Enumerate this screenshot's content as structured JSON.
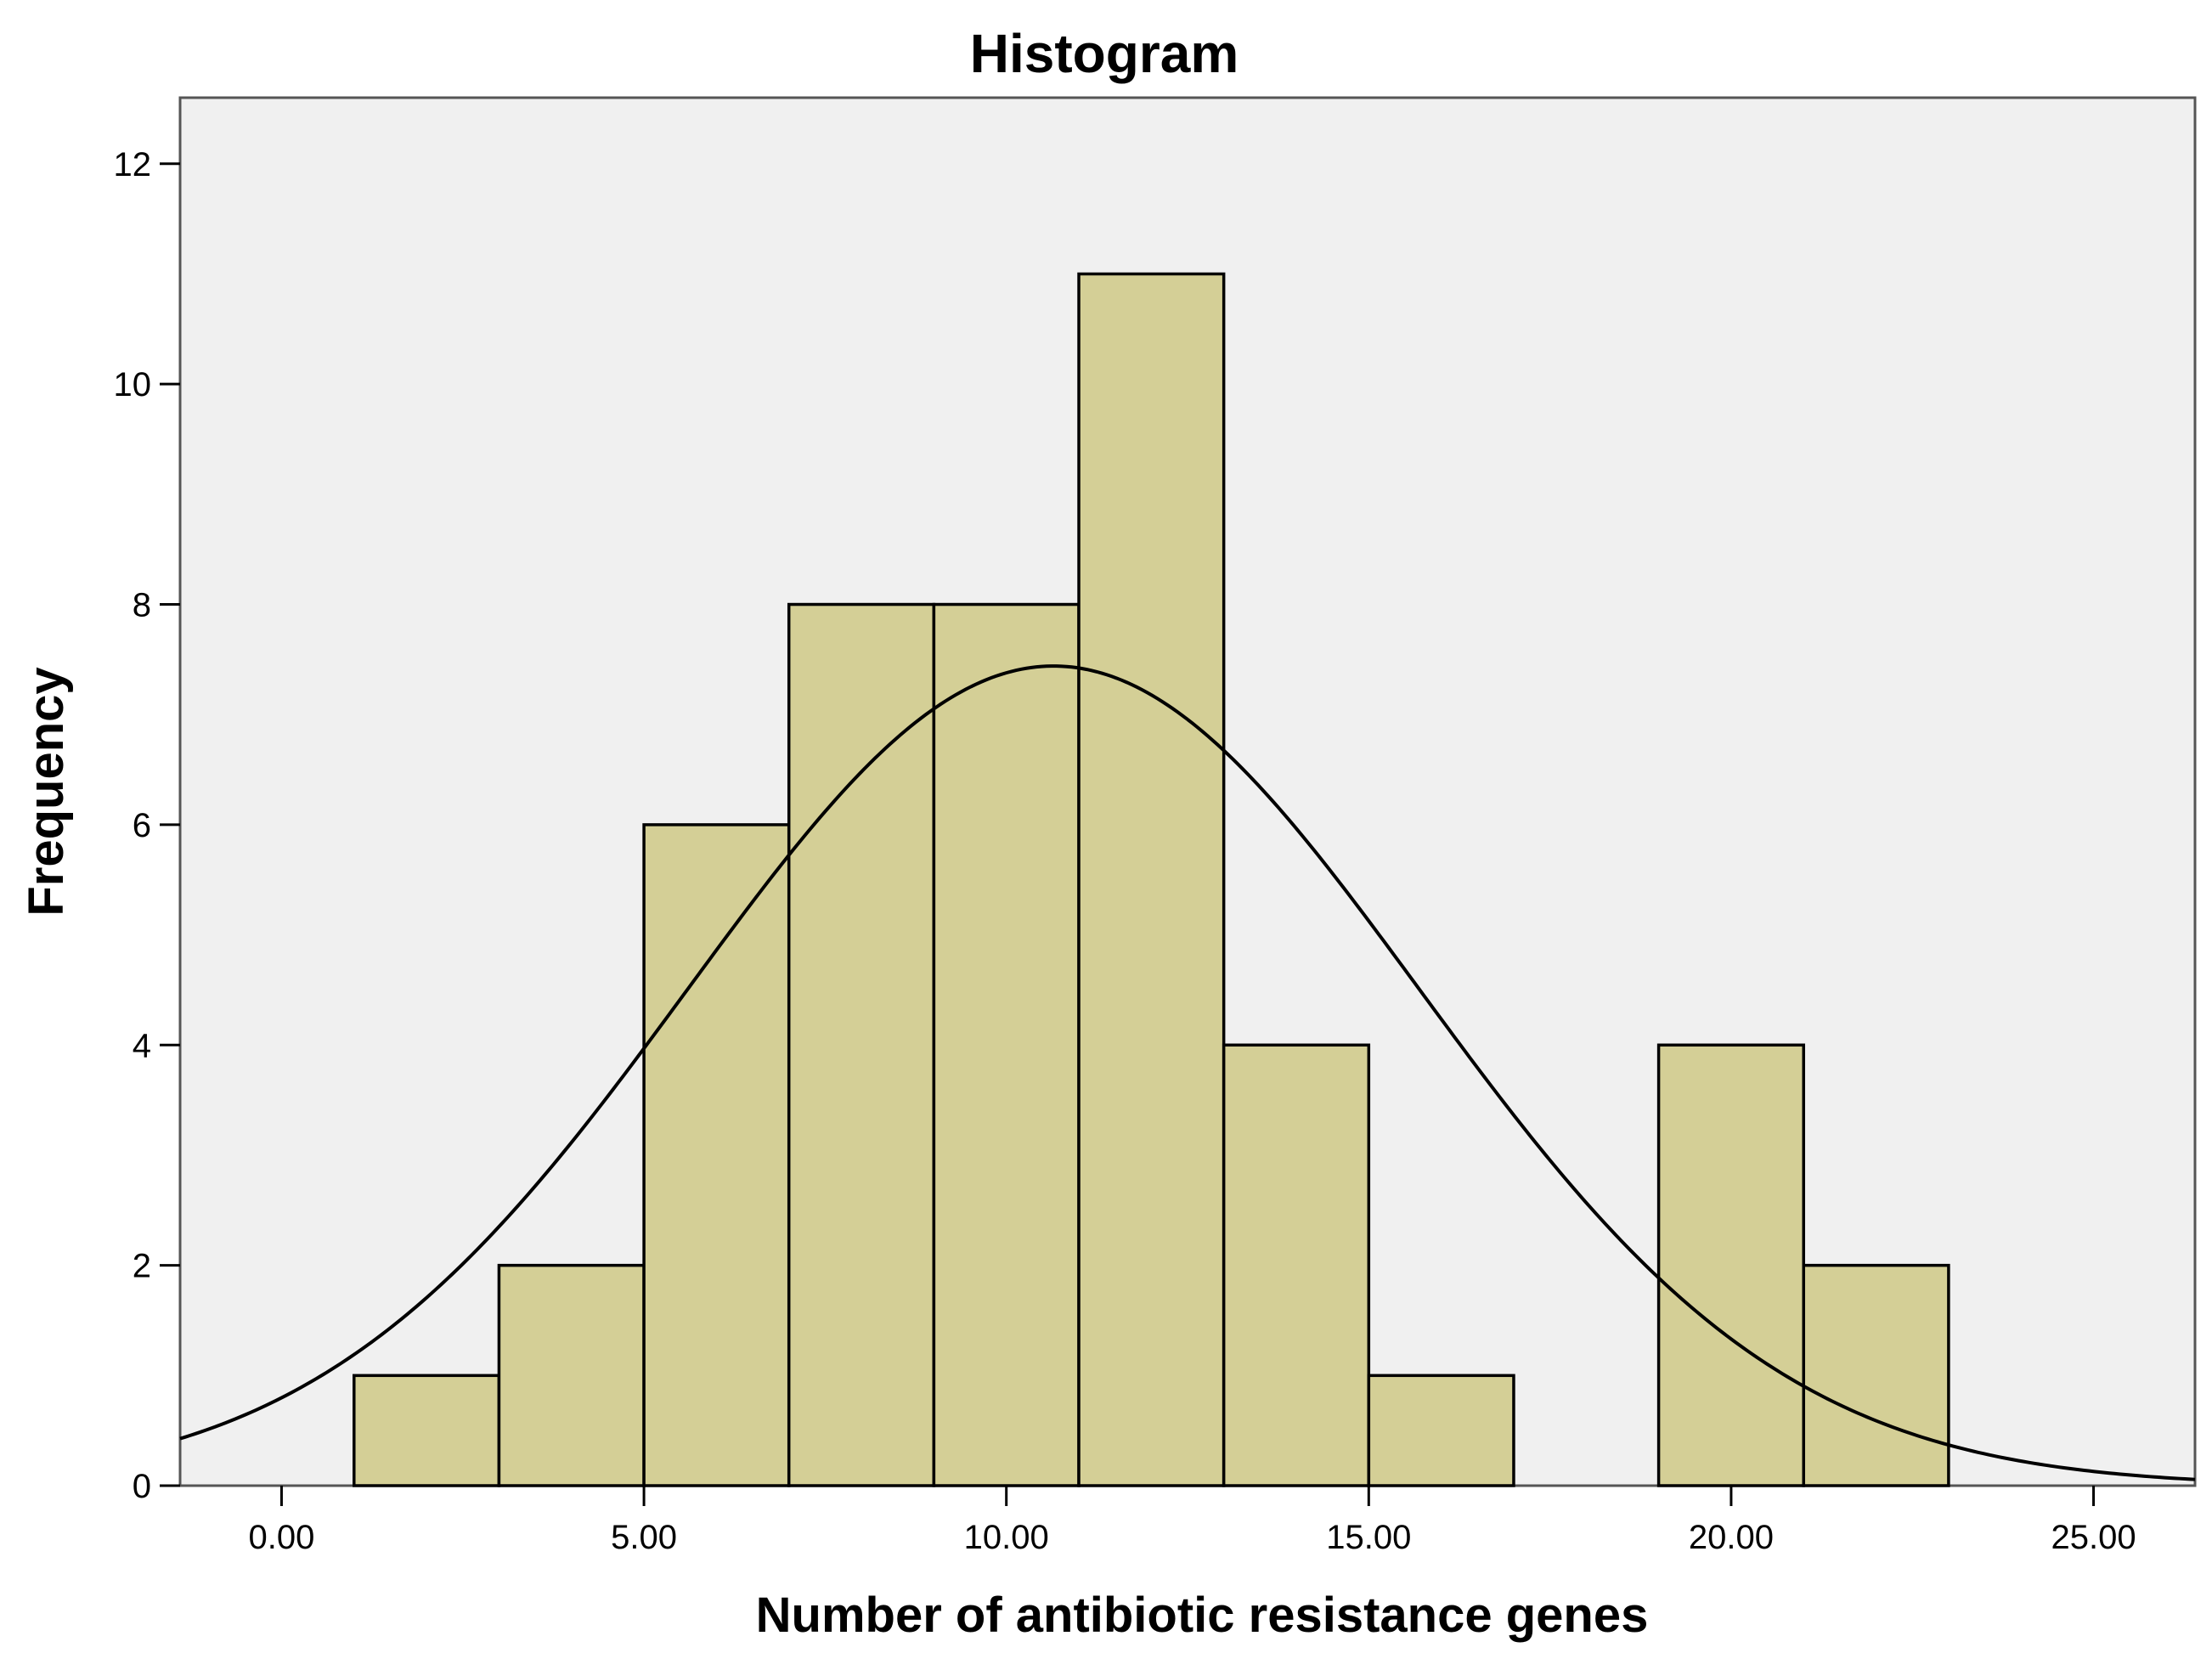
{
  "chart_data": {
    "type": "histogram",
    "title": "Histogram",
    "xlabel": "Number of antibiotic resistance genes",
    "ylabel": "Frequency",
    "xlim": [
      -1.4,
      26.4
    ],
    "ylim": [
      0,
      12.6
    ],
    "x_ticks": [
      0,
      5,
      10,
      15,
      20,
      25
    ],
    "x_tick_labels": [
      "0.00",
      "5.00",
      "10.00",
      "15.00",
      "20.00",
      "25.00"
    ],
    "y_ticks": [
      0,
      2,
      4,
      6,
      8,
      10,
      12
    ],
    "y_tick_labels": [
      "0",
      "2",
      "4",
      "6",
      "8",
      "10",
      "12"
    ],
    "bins": [
      {
        "start": 1,
        "end": 3,
        "count": 1
      },
      {
        "start": 3,
        "end": 5,
        "count": 2
      },
      {
        "start": 5,
        "end": 7,
        "count": 6
      },
      {
        "start": 7,
        "end": 9,
        "count": 8
      },
      {
        "start": 9,
        "end": 11,
        "count": 8
      },
      {
        "start": 11,
        "end": 13,
        "count": 11
      },
      {
        "start": 13,
        "end": 15,
        "count": 4
      },
      {
        "start": 15,
        "end": 17,
        "count": 1
      },
      {
        "start": 17,
        "end": 19,
        "count": 0
      },
      {
        "start": 19,
        "end": 21,
        "count": 4
      },
      {
        "start": 21,
        "end": 23,
        "count": 2
      }
    ],
    "normal_curve": {
      "mean": 10.65,
      "std_dev": 5.04,
      "n": 47,
      "bin_width": 2
    },
    "colors": {
      "bar_fill": "#d4cf96",
      "bar_stroke": "#000000",
      "plot_background": "#f0f0f0",
      "curve": "#000000"
    }
  }
}
